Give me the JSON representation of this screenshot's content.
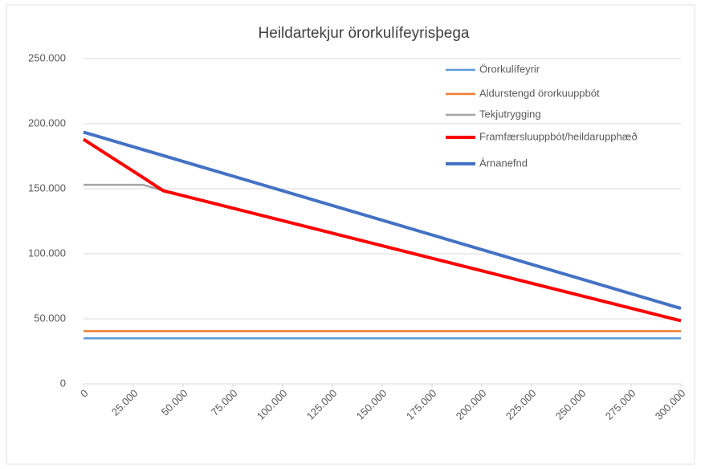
{
  "chart_data": {
    "type": "line",
    "title": "Heildartekjur örorkulífeyrisþega",
    "x": [
      0,
      30000,
      40000,
      300000
    ],
    "xlim": [
      0,
      300000
    ],
    "xticks": [
      0,
      {
        "value": 25000,
        "label": "25.000"
      },
      {
        "value": 50000,
        "label": "50.000"
      },
      {
        "value": 75000,
        "label": "75.000"
      },
      {
        "value": 100000,
        "label": "100.000"
      },
      {
        "value": 125000,
        "label": "125.000"
      },
      {
        "value": 150000,
        "label": "150.000"
      },
      {
        "value": 175000,
        "label": "175.000"
      },
      {
        "value": 200000,
        "label": "200.000"
      },
      {
        "value": 225000,
        "label": "225.000"
      },
      {
        "value": 250000,
        "label": "250.000"
      },
      {
        "value": 275000,
        "label": "275.000"
      },
      {
        "value": 300000,
        "label": "300.000"
      }
    ],
    "ylim": [
      0,
      250000
    ],
    "yticks": [
      0,
      {
        "value": 50000,
        "label": "50.000"
      },
      {
        "value": 100000,
        "label": "100.000"
      },
      {
        "value": 150000,
        "label": "150.000"
      },
      {
        "value": 200000,
        "label": "200.000"
      },
      {
        "value": 250000,
        "label": "250.000"
      }
    ],
    "grid": true,
    "legend": "right",
    "series": [
      {
        "name": "Örorkulífeyrir",
        "color": "#5b9bd5",
        "values": [
          35000,
          35000,
          35000,
          35000
        ]
      },
      {
        "name": "Aldurstengd örorkuuppbót",
        "color": "#ed7d31",
        "values": [
          40500,
          40500,
          40500,
          40500
        ]
      },
      {
        "name": "Tekjutrygging",
        "color": "#a5a5a5",
        "values": [
          153000,
          153000,
          148500,
          null
        ]
      },
      {
        "name": "Framfærsluuppbót/heildarupphæð",
        "color": "#ff0000",
        "values": [
          188000,
          158500,
          148500,
          48500
        ]
      },
      {
        "name": "Árnanefnd",
        "color": "#4472c4",
        "values": [
          193500,
          180000,
          175500,
          58000
        ]
      }
    ]
  }
}
